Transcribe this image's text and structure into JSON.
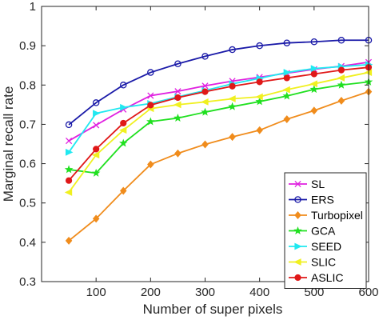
{
  "chart_data": {
    "type": "line",
    "title": "",
    "xlabel": "Number of super pixels",
    "ylabel": "Marginal recall rate",
    "xlim": [
      0,
      600
    ],
    "ylim": [
      0.3,
      1
    ],
    "xticks": [
      100,
      200,
      300,
      400,
      500,
      600
    ],
    "yticks": [
      0.3,
      0.4,
      0.5,
      0.6,
      0.7,
      0.8,
      0.9,
      1
    ],
    "xtick_labels": [
      "100",
      "200",
      "300",
      "400",
      "500",
      "600"
    ],
    "ytick_labels": [
      "0.3",
      "0.4",
      "0.5",
      "0.6",
      "0.7",
      "0.8",
      "0.9",
      "1"
    ],
    "grid": false,
    "legend_position": "bottom-right",
    "x": [
      50,
      100,
      150,
      200,
      250,
      300,
      350,
      400,
      450,
      500,
      550,
      600
    ],
    "series": [
      {
        "name": "SL",
        "color": "#e020e0",
        "marker": "x",
        "values": [
          0.658,
          0.698,
          0.738,
          0.773,
          0.784,
          0.798,
          0.81,
          0.82,
          0.83,
          0.84,
          0.848,
          0.858
        ]
      },
      {
        "name": "ERS",
        "color": "#1a1aa8",
        "marker": "circle",
        "values": [
          0.699,
          0.755,
          0.8,
          0.832,
          0.854,
          0.873,
          0.89,
          0.9,
          0.907,
          0.91,
          0.914,
          0.914
        ]
      },
      {
        "name": "Turbopixel",
        "color": "#f08c1c",
        "marker": "diamond",
        "values": [
          0.404,
          0.46,
          0.531,
          0.598,
          0.626,
          0.649,
          0.668,
          0.685,
          0.713,
          0.735,
          0.76,
          0.783
        ]
      },
      {
        "name": "GCA",
        "color": "#20e020",
        "marker": "star",
        "values": [
          0.585,
          0.576,
          0.652,
          0.707,
          0.716,
          0.731,
          0.745,
          0.758,
          0.772,
          0.789,
          0.8,
          0.808
        ]
      },
      {
        "name": "SEED",
        "color": "#20e8f0",
        "marker": "triangle-right",
        "values": [
          0.629,
          0.728,
          0.743,
          0.753,
          0.77,
          0.786,
          0.803,
          0.817,
          0.832,
          0.842,
          0.847,
          0.852
        ]
      },
      {
        "name": "SLIC",
        "color": "#f0f020",
        "marker": "triangle-left",
        "values": [
          0.527,
          0.622,
          0.685,
          0.74,
          0.75,
          0.757,
          0.765,
          0.77,
          0.788,
          0.803,
          0.818,
          0.832
        ]
      },
      {
        "name": "ASLIC",
        "color": "#e01818",
        "marker": "circle-filled",
        "values": [
          0.557,
          0.637,
          0.703,
          0.749,
          0.768,
          0.783,
          0.797,
          0.808,
          0.818,
          0.828,
          0.838,
          0.845
        ]
      }
    ]
  }
}
